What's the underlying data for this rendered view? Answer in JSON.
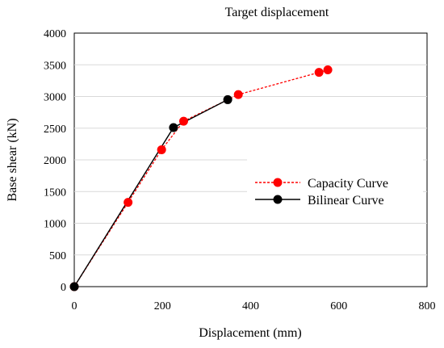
{
  "chart_data": {
    "type": "line",
    "title": "Target displacement",
    "xlabel": "Displacement (mm)",
    "ylabel": "Base shear (kN)",
    "xlim": [
      0,
      800
    ],
    "ylim": [
      0,
      4000
    ],
    "xticks": [
      0,
      200,
      400,
      600,
      800
    ],
    "yticks": [
      0,
      500,
      1000,
      1500,
      2000,
      2500,
      3000,
      3500,
      4000
    ],
    "grid": "horizontal",
    "legend_position": "right",
    "series": [
      {
        "name": "Capacity Curve",
        "color": "#ff0000",
        "line_style": "dashed",
        "x": [
          0,
          122,
          198,
          248,
          372,
          555,
          575
        ],
        "y": [
          0,
          1330,
          2160,
          2610,
          3030,
          3380,
          3420
        ]
      },
      {
        "name": "Bilinear Curve",
        "color": "#000000",
        "line_style": "solid",
        "x": [
          0,
          225,
          348
        ],
        "y": [
          0,
          2510,
          2950
        ]
      }
    ]
  }
}
